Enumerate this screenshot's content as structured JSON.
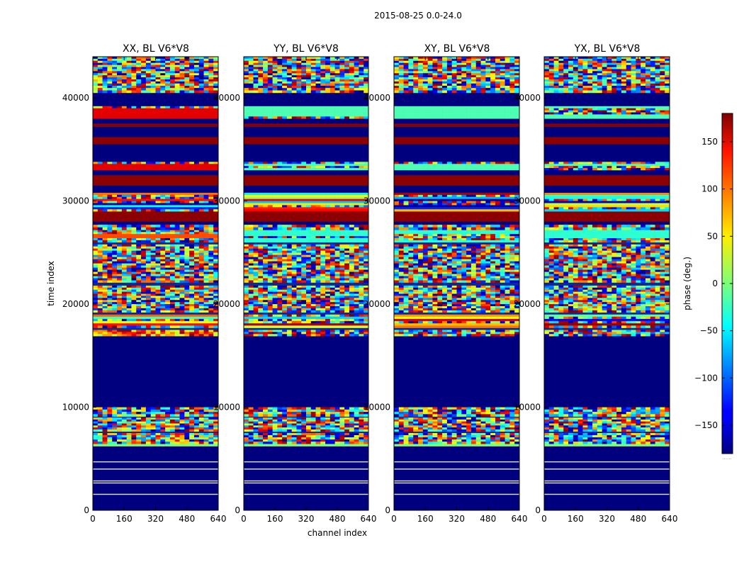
{
  "chart_data": {
    "type": "heatmap",
    "title": "2015-08-25 0.0-24.0",
    "xlabel": "channel index",
    "ylabel": "time index",
    "xlim": [
      0,
      640
    ],
    "ylim": [
      0,
      44000
    ],
    "x_ticks": [
      0,
      160,
      320,
      480,
      640
    ],
    "x_tick_labels": [
      "0",
      "160",
      "320",
      "480",
      "640"
    ],
    "y_ticks": [
      0,
      10000,
      20000,
      30000,
      40000
    ],
    "y_tick_labels": [
      "0",
      "10000",
      "20000",
      "30000",
      "40000"
    ],
    "panels": [
      {
        "title": "XX, BL V6*V8"
      },
      {
        "title": "YY, BL V6*V8"
      },
      {
        "title": "XY, BL V6*V8"
      },
      {
        "title": "YX, BL V6*V8"
      }
    ],
    "colorbar": {
      "label": "phase (deg.)",
      "range": [
        -180,
        180
      ],
      "ticks": [
        -150,
        -100,
        -50,
        0,
        50,
        100,
        150
      ],
      "tick_labels": [
        "−150",
        "−100",
        "−50",
        "0",
        "50",
        "100",
        "150"
      ],
      "colormap": "jet",
      "bottom_note": "......"
    },
    "time_bands": [
      {
        "start": 0,
        "end": 1500,
        "kind": "masked"
      },
      {
        "start": 1500,
        "end": 1600,
        "kind": "thin_line"
      },
      {
        "start": 1600,
        "end": 2600,
        "kind": "masked"
      },
      {
        "start": 2600,
        "end": 2700,
        "kind": "thin_line"
      },
      {
        "start": 2700,
        "end": 2800,
        "kind": "masked"
      },
      {
        "start": 2800,
        "end": 2900,
        "kind": "thin_line"
      },
      {
        "start": 2900,
        "end": 3950,
        "kind": "masked"
      },
      {
        "start": 3950,
        "end": 4050,
        "kind": "thin_line"
      },
      {
        "start": 4050,
        "end": 4650,
        "kind": "masked"
      },
      {
        "start": 4650,
        "end": 4750,
        "kind": "thin_line"
      },
      {
        "start": 4750,
        "end": 6200,
        "kind": "masked"
      },
      {
        "start": 6200,
        "end": 6450,
        "kind": "edge"
      },
      {
        "start": 6450,
        "end": 7500,
        "kind": "noise"
      },
      {
        "start": 7500,
        "end": 7650,
        "kind": "gap"
      },
      {
        "start": 7650,
        "end": 9000,
        "kind": "noise"
      },
      {
        "start": 9000,
        "end": 9100,
        "kind": "gap"
      },
      {
        "start": 9100,
        "end": 10000,
        "kind": "noise"
      },
      {
        "start": 10000,
        "end": 16900,
        "kind": "masked"
      },
      {
        "start": 16900,
        "end": 17500,
        "kind": "red_noise"
      },
      {
        "start": 17500,
        "end": 17700,
        "kind": "gap"
      },
      {
        "start": 17700,
        "end": 19000,
        "kind": "striped"
      },
      {
        "start": 19000,
        "end": 19200,
        "kind": "gap"
      },
      {
        "start": 19200,
        "end": 21800,
        "kind": "noise"
      },
      {
        "start": 21800,
        "end": 22100,
        "kind": "gap"
      },
      {
        "start": 22100,
        "end": 25800,
        "kind": "noise"
      },
      {
        "start": 25800,
        "end": 26000,
        "kind": "gap"
      },
      {
        "start": 26000,
        "end": 27200,
        "kind": "warm_stripe"
      },
      {
        "start": 27200,
        "end": 27700,
        "kind": "noise"
      },
      {
        "start": 27700,
        "end": 28000,
        "kind": "masked"
      },
      {
        "start": 28000,
        "end": 29000,
        "kind": "dark_red"
      },
      {
        "start": 29000,
        "end": 30800,
        "kind": "striped"
      },
      {
        "start": 30800,
        "end": 31500,
        "kind": "masked"
      },
      {
        "start": 31500,
        "end": 32500,
        "kind": "dark_red"
      },
      {
        "start": 32500,
        "end": 33000,
        "kind": "masked"
      },
      {
        "start": 33000,
        "end": 33800,
        "kind": "stripe_cyan"
      },
      {
        "start": 33800,
        "end": 35500,
        "kind": "masked"
      },
      {
        "start": 35500,
        "end": 36200,
        "kind": "dark_red"
      },
      {
        "start": 36200,
        "end": 37200,
        "kind": "masked"
      },
      {
        "start": 37200,
        "end": 37500,
        "kind": "dark_red"
      },
      {
        "start": 37500,
        "end": 38000,
        "kind": "masked"
      },
      {
        "start": 38000,
        "end": 39200,
        "kind": "stripe_cyan"
      },
      {
        "start": 39200,
        "end": 40500,
        "kind": "masked"
      },
      {
        "start": 40500,
        "end": 41200,
        "kind": "stripe_mixed"
      },
      {
        "start": 41200,
        "end": 44000,
        "kind": "noise"
      }
    ]
  }
}
